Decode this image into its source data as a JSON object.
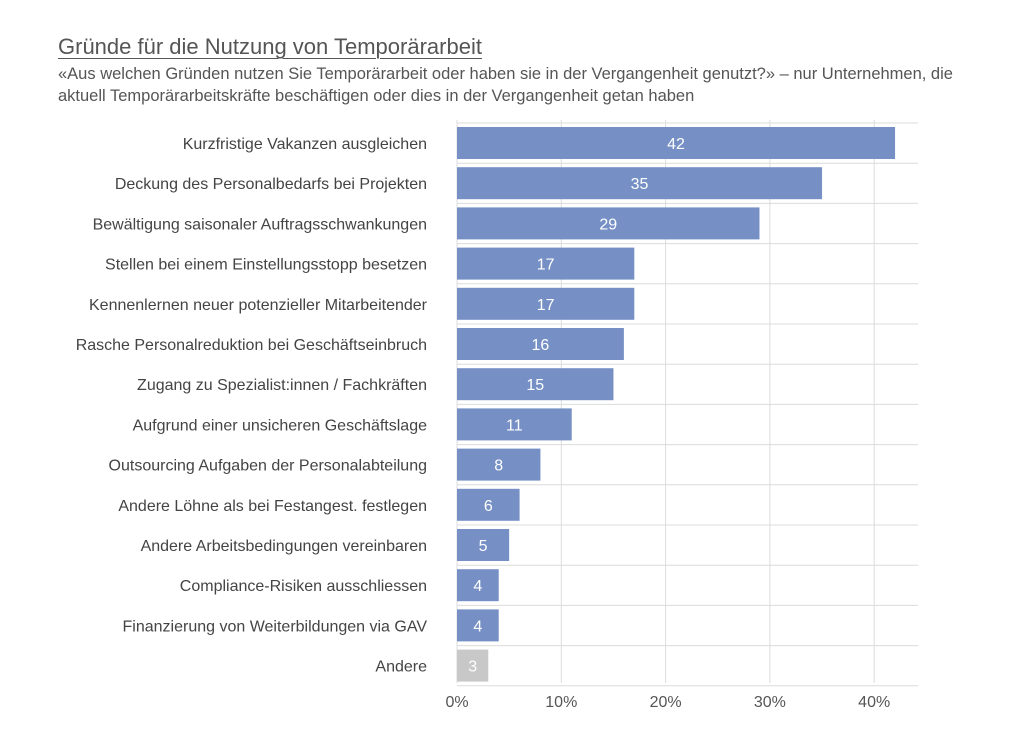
{
  "chart_data": {
    "type": "bar",
    "orientation": "horizontal",
    "title": "Gründe für die Nutzung von Temporärarbeit",
    "subtitle": "«Aus welchen Gründen nutzen Sie Temporärarbeit oder haben sie in der Vergangenheit genutzt?» – nur Unternehmen, die aktuell Temporärarbeitskräfte beschäftigen oder dies in der Vergangenheit getan haben",
    "categories": [
      "Kurzfristige Vakanzen ausgleichen",
      "Deckung des Personalbedarfs bei Projekten",
      "Bewältigung saisonaler Auftragsschwankungen",
      "Stellen bei einem Einstellungsstopp besetzen",
      "Kennenlernen neuer potenzieller Mitarbeitender",
      "Rasche Personalreduktion bei Geschäftseinbruch",
      "Zugang zu Spezialist:innen / Fachkräften",
      "Aufgrund einer unsicheren Geschäftslage",
      "Outsourcing Aufgaben der Personalabteilung",
      "Andere Löhne als bei Festangest. festlegen",
      "Andere Arbeitsbedingungen vereinbaren",
      "Compliance-Risiken ausschliessen",
      "Finanzierung von Weiterbildungen via GAV",
      "Andere"
    ],
    "values": [
      42,
      35,
      29,
      17,
      17,
      16,
      15,
      11,
      8,
      6,
      5,
      4,
      4,
      3
    ],
    "data_labels": [
      "42",
      "35",
      "29",
      "17",
      "17",
      "16",
      "15",
      "11",
      "8",
      "6",
      "5",
      "4",
      "4",
      "3"
    ],
    "bar_colors": [
      "#7690c5",
      "#7690c5",
      "#7690c5",
      "#7690c5",
      "#7690c5",
      "#7690c5",
      "#7690c5",
      "#7690c5",
      "#7690c5",
      "#7690c5",
      "#7690c5",
      "#7690c5",
      "#7690c5",
      "#c8c8c8"
    ],
    "xlim": [
      0,
      44
    ],
    "x_ticks": [
      0,
      10,
      20,
      30,
      40
    ],
    "x_tick_labels": [
      "0%",
      "10%",
      "20%",
      "30%",
      "40%"
    ],
    "grid": true,
    "xlabel": "",
    "ylabel": ""
  }
}
